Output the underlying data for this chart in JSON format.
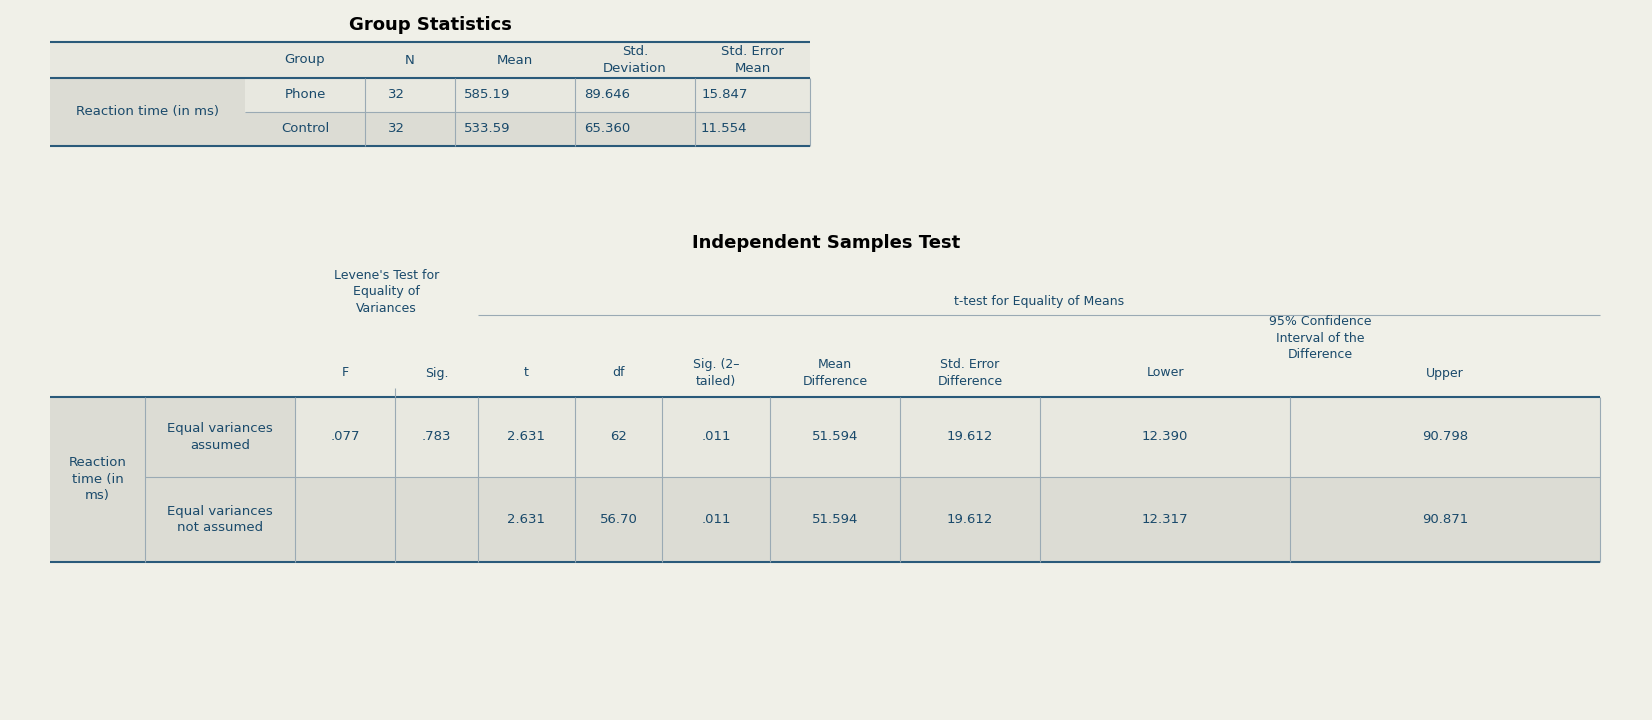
{
  "bg_color": "#f0f0e8",
  "text_color": "#1a4a6b",
  "title_color": "#000000",
  "row_bg_gray": "#dcdcd4",
  "row_bg_light": "#e8e8e0",
  "line_color": "#2a5a7a",
  "divider_color": "#9aaab4",
  "group_stats_title": "Group Statistics",
  "group_stats_row_label": "Reaction time (in ms)",
  "group_stats_col_headers": [
    "Group",
    "N",
    "Mean",
    "Std.\nDeviation",
    "Std. Error\nMean"
  ],
  "group_stats_rows": [
    [
      "Phone",
      "32",
      "585.19",
      "89.646",
      "15.847"
    ],
    [
      "Control",
      "32",
      "533.59",
      "65.360",
      "11.554"
    ]
  ],
  "ind_samples_title": "Independent Samples Test",
  "levene_header": "Levene's Test for\nEquality of\nVariances",
  "ttest_header": "t-test for Equality of Means",
  "ci_header": "95% Confidence\nInterval of the\nDifference",
  "col_sub_headers": [
    "F",
    "Sig.",
    "t",
    "df",
    "Sig. (2–\ntailed)",
    "Mean\nDifference",
    "Std. Error\nDifference",
    "Lower",
    "Upper"
  ],
  "ind_row_label": "Reaction\ntime (in\nms)",
  "ind_rows": [
    {
      "sub_label": "Equal variances\nassumed",
      "values": [
        ".077",
        ".783",
        "2.631",
        "62",
        ".011",
        "51.594",
        "19.612",
        "12.390",
        "90.798"
      ]
    },
    {
      "sub_label": "Equal variances\nnot assumed",
      "values": [
        "",
        "",
        "2.631",
        "56.70",
        ".011",
        "51.594",
        "19.612",
        "12.317",
        "90.871"
      ]
    }
  ]
}
